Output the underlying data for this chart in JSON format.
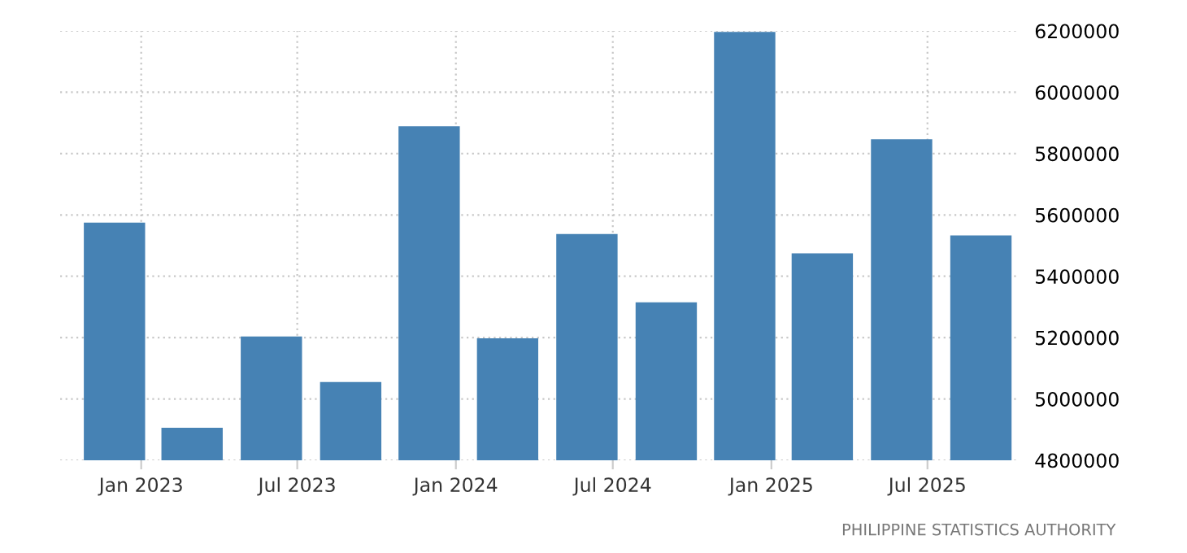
{
  "chart_data": {
    "type": "bar",
    "x": [
      "2022-12",
      "2023-03",
      "2023-06",
      "2023-09",
      "2023-12",
      "2024-03",
      "2024-06",
      "2024-09",
      "2024-12",
      "2025-03",
      "2025-06",
      "2025-09"
    ],
    "values": [
      5575000,
      4906000,
      5204000,
      5055000,
      5889000,
      5198000,
      5538000,
      5315000,
      6197000,
      5475000,
      5847000,
      5533000
    ],
    "color": "#4682b4",
    "xlim": [
      "2022-09-29",
      "2025-10-12"
    ],
    "xticks": [
      {
        "value": "2023-01",
        "label": "Jan 2023"
      },
      {
        "value": "2023-07",
        "label": "Jul 2023"
      },
      {
        "value": "2024-01",
        "label": "Jan 2024"
      },
      {
        "value": "2024-07",
        "label": "Jul 2024"
      },
      {
        "value": "2025-01",
        "label": "Jan 2025"
      },
      {
        "value": "2025-07",
        "label": "Jul 2025"
      }
    ],
    "ylim": [
      4800000,
      6200000
    ],
    "yticks": [
      4800000,
      5000000,
      5200000,
      5400000,
      5600000,
      5800000,
      6000000,
      6200000
    ],
    "grid": true,
    "annotations": [
      "PHILIPPINE STATISTICS AUTHORITY"
    ]
  }
}
